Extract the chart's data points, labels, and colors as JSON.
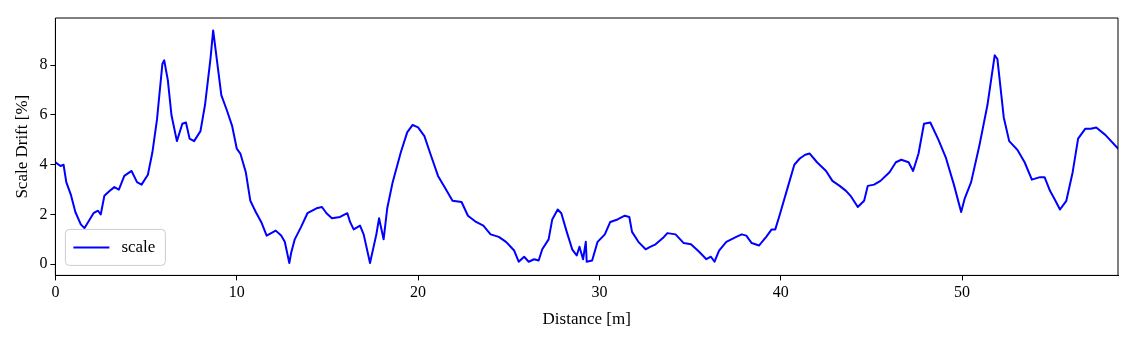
{
  "chart_data": {
    "type": "line",
    "xlabel": "Distance [m]",
    "ylabel": "Scale Drift [%]",
    "xlim": [
      0,
      58.6
    ],
    "ylim": [
      -0.45,
      9.9
    ],
    "xticks": [
      0,
      10,
      20,
      30,
      40,
      50
    ],
    "yticks": [
      0,
      2,
      4,
      6,
      8
    ],
    "grid": false,
    "legend": "bottom left",
    "marker": "none",
    "line_style": "solid",
    "series": [
      {
        "name": "scale",
        "color": "#0000ff",
        "x": [
          0,
          0.28,
          0.45,
          0.6,
          0.85,
          1.1,
          1.4,
          1.6,
          1.85,
          2.1,
          2.35,
          2.5,
          2.7,
          3.0,
          3.25,
          3.5,
          3.8,
          4.2,
          4.5,
          4.75,
          5.1,
          5.35,
          5.6,
          5.9,
          6.0,
          6.2,
          6.4,
          6.7,
          7.0,
          7.2,
          7.4,
          7.65,
          8.0,
          8.25,
          8.55,
          8.7,
          8.9,
          9.15,
          9.45,
          9.75,
          10.0,
          10.2,
          10.5,
          10.75,
          11.05,
          11.35,
          11.65,
          11.9,
          12.15,
          12.45,
          12.65,
          12.9,
          13.0,
          13.2,
          13.55,
          13.9,
          14.4,
          14.7,
          14.95,
          15.25,
          15.7,
          16.1,
          16.25,
          16.45,
          16.8,
          17.0,
          17.35,
          17.7,
          17.85,
          18.1,
          18.3,
          18.6,
          19.05,
          19.4,
          19.7,
          20.0,
          20.35,
          20.65,
          21.1,
          21.5,
          21.9,
          22.4,
          22.75,
          23.2,
          23.6,
          24.0,
          24.45,
          24.85,
          25.3,
          25.55,
          25.85,
          26.1,
          26.4,
          26.65,
          26.85,
          27.2,
          27.4,
          27.7,
          27.9,
          28.2,
          28.5,
          28.75,
          28.9,
          29.1,
          29.25,
          29.3,
          29.6,
          29.9,
          30.3,
          30.6,
          31.0,
          31.4,
          31.65,
          31.8,
          32.15,
          32.55,
          32.8,
          33.1,
          33.5,
          33.75,
          34.2,
          34.65,
          35.05,
          35.5,
          35.9,
          36.15,
          36.35,
          36.6,
          37.0,
          37.55,
          37.85,
          38.1,
          38.4,
          38.8,
          39.2,
          39.5,
          39.7,
          39.95,
          40.35,
          40.75,
          41.05,
          41.35,
          41.6,
          42.0,
          42.5,
          42.85,
          43.25,
          43.6,
          43.85,
          44.25,
          44.6,
          44.8,
          45.15,
          45.5,
          46.0,
          46.35,
          46.65,
          47.05,
          47.3,
          47.6,
          47.9,
          48.25,
          48.7,
          49.1,
          49.55,
          49.95,
          50.15,
          50.5,
          50.95,
          51.4,
          51.8,
          51.95,
          52.3,
          52.6,
          53.05,
          53.45,
          53.85,
          54.3,
          54.55,
          54.85,
          55.15,
          55.4,
          55.75,
          56.1,
          56.4,
          56.8,
          57.1,
          57.4,
          57.9,
          58.6
        ],
        "values": [
          4.1,
          3.95,
          4.0,
          3.3,
          2.8,
          2.1,
          1.6,
          1.45,
          1.75,
          2.05,
          2.15,
          2.0,
          2.75,
          2.95,
          3.1,
          3.0,
          3.55,
          3.75,
          3.3,
          3.2,
          3.6,
          4.5,
          5.8,
          8.05,
          8.2,
          7.4,
          6.0,
          4.95,
          5.65,
          5.7,
          5.05,
          4.95,
          5.35,
          6.4,
          8.25,
          9.4,
          8.25,
          6.8,
          6.2,
          5.55,
          4.65,
          4.45,
          3.7,
          2.55,
          2.1,
          1.7,
          1.15,
          1.25,
          1.35,
          1.15,
          0.9,
          0.05,
          0.45,
          1.0,
          1.5,
          2.05,
          2.25,
          2.3,
          2.05,
          1.85,
          1.9,
          2.05,
          1.7,
          1.4,
          1.55,
          1.2,
          0.05,
          1.2,
          1.85,
          1.0,
          2.25,
          3.3,
          4.5,
          5.3,
          5.6,
          5.5,
          5.15,
          4.5,
          3.55,
          3.05,
          2.55,
          2.5,
          1.95,
          1.7,
          1.55,
          1.2,
          1.1,
          0.9,
          0.55,
          0.1,
          0.3,
          0.1,
          0.2,
          0.15,
          0.6,
          1.0,
          1.8,
          2.2,
          2.05,
          1.3,
          0.6,
          0.35,
          0.7,
          0.2,
          0.9,
          0.1,
          0.15,
          0.9,
          1.2,
          1.7,
          1.8,
          1.95,
          1.9,
          1.3,
          0.9,
          0.6,
          0.7,
          0.8,
          1.05,
          1.25,
          1.2,
          0.85,
          0.8,
          0.5,
          0.2,
          0.3,
          0.1,
          0.55,
          0.9,
          1.1,
          1.2,
          1.15,
          0.85,
          0.75,
          1.1,
          1.4,
          1.4,
          2.0,
          3.0,
          4.0,
          4.25,
          4.4,
          4.45,
          4.1,
          3.75,
          3.35,
          3.15,
          2.95,
          2.75,
          2.3,
          2.55,
          3.15,
          3.2,
          3.35,
          3.7,
          4.1,
          4.2,
          4.1,
          3.75,
          4.45,
          5.65,
          5.7,
          5.0,
          4.3,
          3.2,
          2.1,
          2.65,
          3.3,
          4.75,
          6.4,
          8.4,
          8.25,
          5.9,
          4.95,
          4.6,
          4.1,
          3.4,
          3.5,
          3.5,
          2.95,
          2.55,
          2.2,
          2.55,
          3.7,
          5.05,
          5.45,
          5.45,
          5.5,
          5.2,
          4.65
        ]
      }
    ]
  }
}
